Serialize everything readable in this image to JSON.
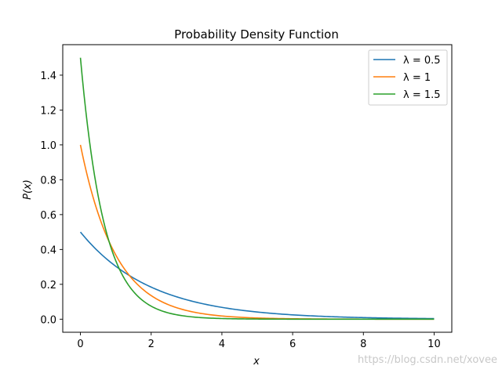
{
  "chart_data": {
    "type": "line",
    "title": "Probability Density Function",
    "xlabel": "x",
    "ylabel": "P(x)",
    "xlim": [
      -0.5,
      10.5
    ],
    "ylim": [
      -0.075,
      1.575
    ],
    "x_range": [
      0,
      10
    ],
    "function": "lambda * exp(-lambda * x)",
    "xticks": [
      0,
      2,
      4,
      6,
      8,
      10
    ],
    "yticks": [
      0.0,
      0.2,
      0.4,
      0.6,
      0.8,
      1.0,
      1.2,
      1.4
    ],
    "grid": false,
    "legend_position": "top-right",
    "series": [
      {
        "name": "λ = 0.5",
        "lambda": 0.5,
        "color": "#1f77b4",
        "values_sample": {
          "x": [
            0,
            2,
            4,
            6,
            8,
            10
          ],
          "y": [
            0.5,
            0.184,
            0.068,
            0.025,
            0.009,
            0.003
          ]
        }
      },
      {
        "name": "λ = 1",
        "lambda": 1,
        "color": "#ff7f0e",
        "values_sample": {
          "x": [
            0,
            2,
            4,
            6,
            8,
            10
          ],
          "y": [
            1.0,
            0.135,
            0.018,
            0.002,
            0.0,
            0.0
          ]
        }
      },
      {
        "name": "λ = 1.5",
        "lambda": 1.5,
        "color": "#2ca02c",
        "values_sample": {
          "x": [
            0,
            2,
            4,
            6,
            8,
            10
          ],
          "y": [
            1.5,
            0.075,
            0.004,
            0.0,
            0.0,
            0.0
          ]
        }
      }
    ]
  },
  "watermark": "https://blog.csdn.net/xovee"
}
